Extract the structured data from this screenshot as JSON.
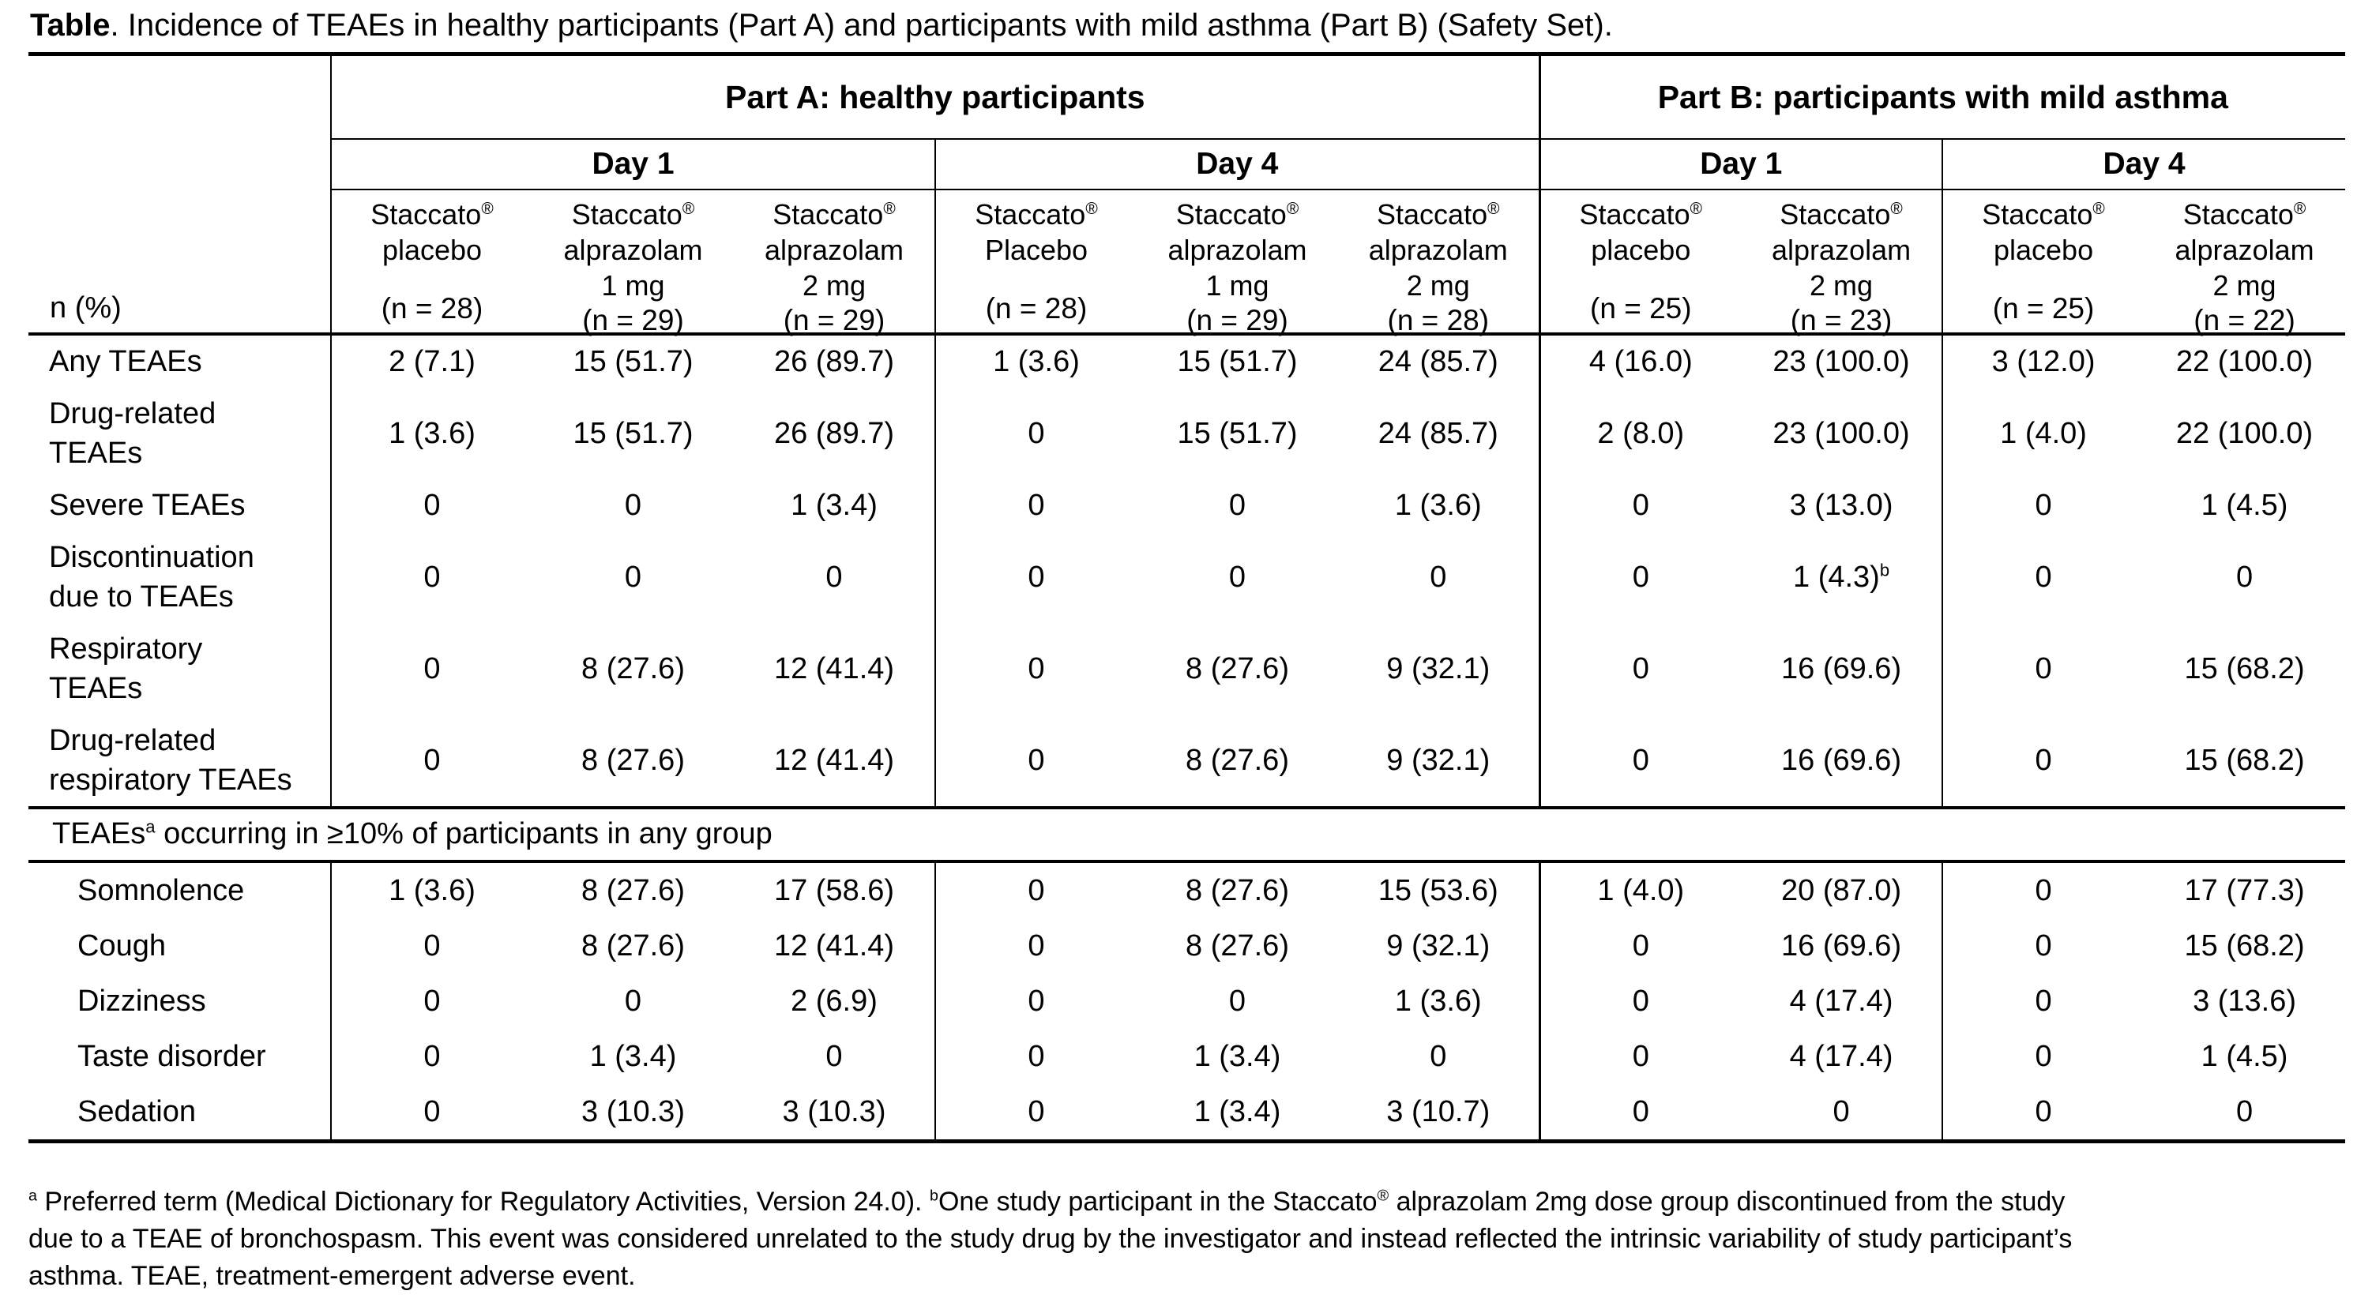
{
  "title": {
    "bold": "Table",
    "rest": ". Incidence of TEAEs in healthy participants (Part A) and participants with mild asthma (Part B) (Safety Set)."
  },
  "table": {
    "corner_label": "n (%)",
    "part_headers": [
      "Part A: healthy participants",
      "Part B: participants with mild asthma"
    ],
    "day_headers": [
      "Day 1",
      "Day 4",
      "Day 1",
      "Day 4"
    ],
    "columns": [
      {
        "lines": [
          "Staccato^®^",
          "placebo"
        ],
        "n": "(n = 28)"
      },
      {
        "lines": [
          "Staccato^®^",
          "alprazolam",
          "1 mg"
        ],
        "n": "(n = 29)"
      },
      {
        "lines": [
          "Staccato^®^",
          "alprazolam",
          "2 mg"
        ],
        "n": "(n = 29)"
      },
      {
        "lines": [
          "Staccato^®^",
          "Placebo"
        ],
        "n": "(n = 28)"
      },
      {
        "lines": [
          "Staccato^®^",
          "alprazolam",
          "1 mg"
        ],
        "n": "(n = 29)"
      },
      {
        "lines": [
          "Staccato^®^",
          "alprazolam",
          "2 mg"
        ],
        "n": "(n = 28)"
      },
      {
        "lines": [
          "Staccato^®^",
          "placebo"
        ],
        "n": "(n = 25)"
      },
      {
        "lines": [
          "Staccato^®^",
          "alprazolam",
          "2 mg"
        ],
        "n": "(n = 23)"
      },
      {
        "lines": [
          "Staccato^®^",
          "placebo"
        ],
        "n": "(n = 25)"
      },
      {
        "lines": [
          "Staccato^®^",
          "alprazolam",
          "2 mg"
        ],
        "n": "(n = 22)"
      }
    ],
    "rows_main": [
      {
        "label": "Any TEAEs",
        "cells": [
          "2 (7.1)",
          "15 (51.7)",
          "26 (89.7)",
          "1 (3.6)",
          "15 (51.7)",
          "24 (85.7)",
          "4 (16.0)",
          "23 (100.0)",
          "3 (12.0)",
          "22 (100.0)"
        ]
      },
      {
        "label": "Drug-related TEAEs",
        "cells": [
          "1 (3.6)",
          "15 (51.7)",
          "26 (89.7)",
          "0",
          "15 (51.7)",
          "24 (85.7)",
          "2 (8.0)",
          "23 (100.0)",
          "1 (4.0)",
          "22 (100.0)"
        ]
      },
      {
        "label": "Severe TEAEs",
        "cells": [
          "0",
          "0",
          "1 (3.4)",
          "0",
          "0",
          "1 (3.6)",
          "0",
          "3 (13.0)",
          "0",
          "1 (4.5)"
        ]
      },
      {
        "label": "Discontinuation due to TEAEs",
        "cells": [
          "0",
          "0",
          "0",
          "0",
          "0",
          "0",
          "0",
          "1 (4.3)^b^",
          "0",
          "0"
        ]
      },
      {
        "label": "Respiratory TEAEs",
        "cells": [
          "0",
          "8 (27.6)",
          "12 (41.4)",
          "0",
          "8 (27.6)",
          "9 (32.1)",
          "0",
          "16 (69.6)",
          "0",
          "15 (68.2)"
        ]
      },
      {
        "label": "Drug-related respiratory TEAEs",
        "cells": [
          "0",
          "8 (27.6)",
          "12 (41.4)",
          "0",
          "8 (27.6)",
          "9 (32.1)",
          "0",
          "16 (69.6)",
          "0",
          "15 (68.2)"
        ]
      }
    ],
    "section_header": "TEAEs^a^ occurring in ≥10% of participants in any group",
    "rows_preferred": [
      {
        "label": "Somnolence",
        "cells": [
          "1 (3.6)",
          "8 (27.6)",
          "17 (58.6)",
          "0",
          "8 (27.6)",
          "15 (53.6)",
          "1 (4.0)",
          "20 (87.0)",
          "0",
          "17 (77.3)"
        ]
      },
      {
        "label": "Cough",
        "cells": [
          "0",
          "8 (27.6)",
          "12 (41.4)",
          "0",
          "8 (27.6)",
          "9 (32.1)",
          "0",
          "16 (69.6)",
          "0",
          "15 (68.2)"
        ]
      },
      {
        "label": "Dizziness",
        "cells": [
          "0",
          "0",
          "2 (6.9)",
          "0",
          "0",
          "1 (3.6)",
          "0",
          "4 (17.4)",
          "0",
          "3 (13.6)"
        ]
      },
      {
        "label": "Taste disorder",
        "cells": [
          "0",
          "1 (3.4)",
          "0",
          "0",
          "1 (3.4)",
          "0",
          "0",
          "4 (17.4)",
          "0",
          "1 (4.5)"
        ]
      },
      {
        "label": "Sedation",
        "cells": [
          "0",
          "3 (10.3)",
          "3 (10.3)",
          "0",
          "1 (3.4)",
          "3 (10.7)",
          "0",
          "0",
          "0",
          "0"
        ]
      }
    ]
  },
  "footnote": {
    "lines": [
      "^a^ Preferred term (Medical Dictionary for Regulatory Activities, Version 24.0). ^b^One study participant in the Staccato^®^ alprazolam 2mg dose group discontinued from the study",
      "due to a TEAE of bronchospasm. This event was considered unrelated to the study drug by the investigator and instead reflected the intrinsic variability of study participant’s",
      "asthma. TEAE, treatment-emergent adverse event."
    ]
  },
  "colors": {
    "text": "#000000",
    "rules": "#000000",
    "background": "#ffffff"
  }
}
